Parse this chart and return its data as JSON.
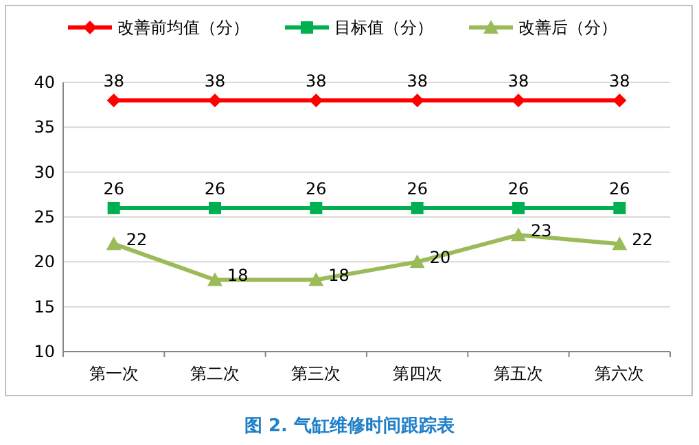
{
  "chart_data": {
    "type": "line",
    "title": "图 2.  气缸维修时间跟踪表",
    "categories": [
      "第一次",
      "第二次",
      "第三次",
      "第四次",
      "第五次",
      "第六次"
    ],
    "series": [
      {
        "name": "改善前均值（分）",
        "color": "#ff0000",
        "marker": "diamond",
        "values": [
          38,
          38,
          38,
          38,
          38,
          38
        ]
      },
      {
        "name": "目标值（分）",
        "color": "#00b050",
        "marker": "square",
        "values": [
          26,
          26,
          26,
          26,
          26,
          26
        ]
      },
      {
        "name": "改善后（分）",
        "color": "#9bbb59",
        "marker": "triangle",
        "values": [
          22,
          18,
          18,
          20,
          23,
          22
        ]
      }
    ],
    "ylim": [
      10,
      40
    ],
    "yticks": [
      10,
      15,
      20,
      25,
      30,
      35,
      40
    ],
    "grid": "y",
    "legend": "top",
    "data_labels": true
  }
}
